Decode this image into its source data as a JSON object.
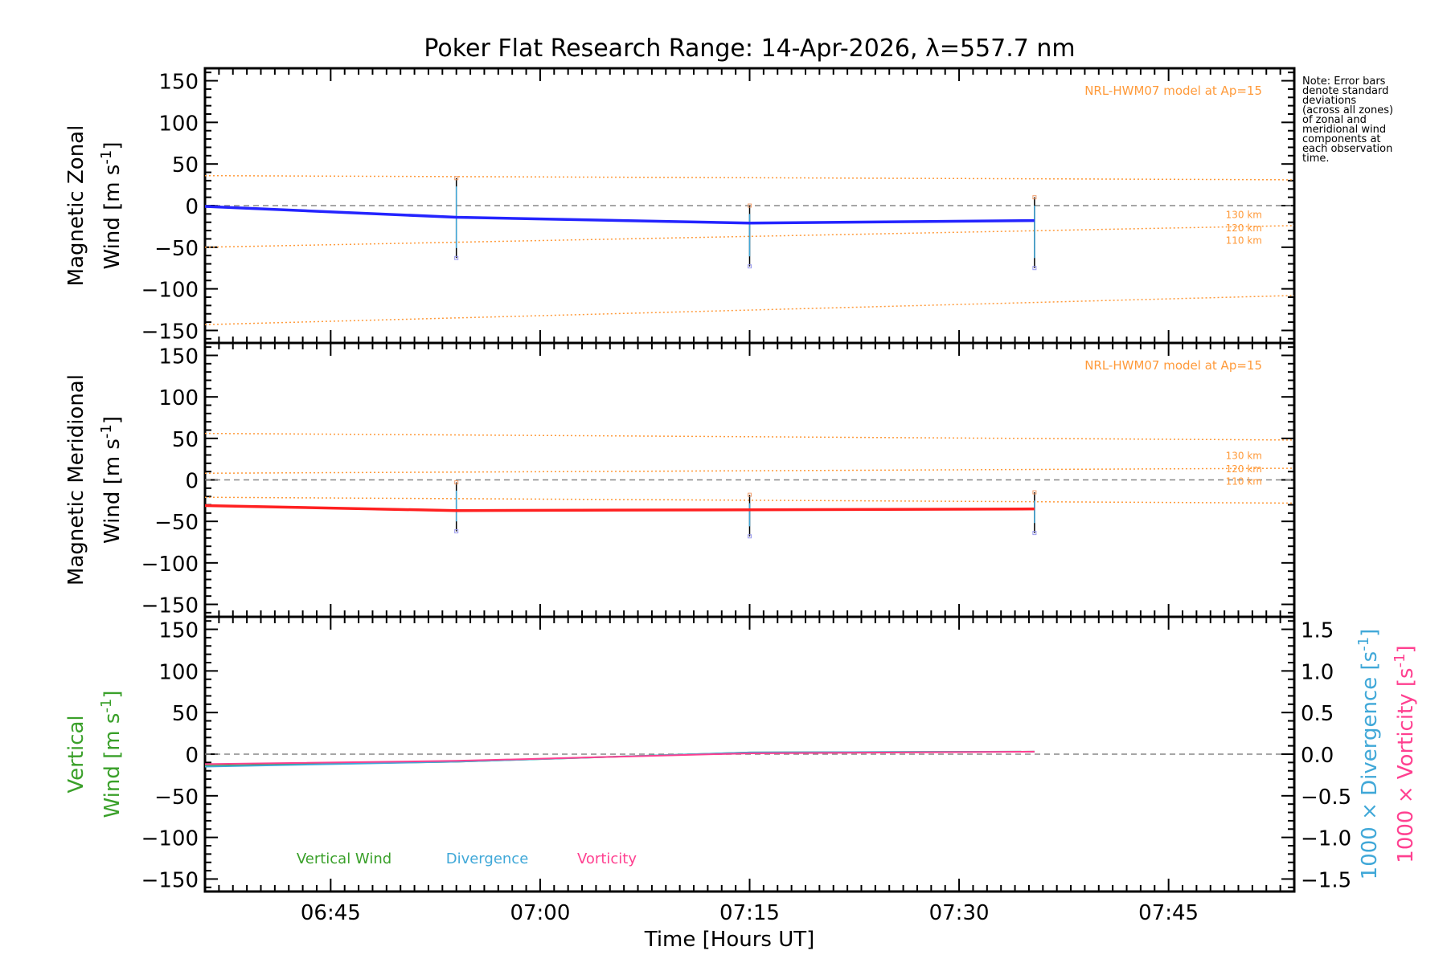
{
  "chart_data": [
    {
      "type": "line",
      "panel": "zonal",
      "title": "Poker Flat Research Range: 14-Apr-2026, λ=557.7 nm",
      "ylabel_line1": "Magnetic Zonal",
      "ylabel_line2": "Wind [m s",
      "ylabel_sup": "-1",
      "ylabel_close": "]",
      "ylim": [
        -165,
        165
      ],
      "yticks": [
        150,
        100,
        50,
        0,
        -50,
        -100,
        -150
      ],
      "ytick_labels": [
        "150",
        "100",
        "50",
        "0",
        "−50",
        "−100",
        "−150"
      ],
      "model_label": "NRL-HWM07 model at Ap=15",
      "model_altitude_labels": [
        "130 km",
        "120 km",
        "110 km"
      ],
      "model_series": [
        {
          "name": "model-upper",
          "x": [
            6.6,
            7.9
          ],
          "values": [
            36,
            31
          ]
        },
        {
          "name": "model-110",
          "x": [
            6.6,
            7.9
          ],
          "values": [
            -50,
            -24
          ]
        },
        {
          "name": "model-lower",
          "x": [
            6.6,
            7.9
          ],
          "values": [
            -143,
            -108
          ]
        }
      ],
      "series": [
        {
          "name": "Magnetic Zonal Wind",
          "color": "#2424ff",
          "x": [
            6.6,
            6.9,
            7.25,
            7.59
          ],
          "values": [
            -1,
            -14,
            -21,
            -18
          ]
        }
      ],
      "error_bars": [
        {
          "x": 6.9,
          "low": -63,
          "high": 33
        },
        {
          "x": 7.25,
          "low": -73,
          "high": 0
        },
        {
          "x": 7.59,
          "low": -75,
          "high": 10
        }
      ]
    },
    {
      "type": "line",
      "panel": "meridional",
      "ylabel_line1": "Magnetic Meridional",
      "ylabel_line2": "Wind [m s",
      "ylabel_sup": "-1",
      "ylabel_close": "]",
      "ylim": [
        -165,
        165
      ],
      "yticks": [
        150,
        100,
        50,
        0,
        -50,
        -100,
        -150
      ],
      "ytick_labels": [
        "150",
        "100",
        "50",
        "0",
        "−50",
        "−100",
        "−150"
      ],
      "model_label": "NRL-HWM07 model at Ap=15",
      "model_altitude_labels": [
        "130 km",
        "120 km",
        "110 km"
      ],
      "model_series": [
        {
          "name": "model-130",
          "x": [
            6.6,
            7.9
          ],
          "values": [
            56,
            48
          ]
        },
        {
          "name": "model-120",
          "x": [
            6.6,
            7.9
          ],
          "values": [
            8,
            14
          ]
        },
        {
          "name": "model-110",
          "x": [
            6.6,
            7.9
          ],
          "values": [
            -21,
            -28
          ]
        }
      ],
      "series": [
        {
          "name": "Magnetic Meridional Wind",
          "color": "#ff2020",
          "x": [
            6.6,
            6.9,
            7.25,
            7.59
          ],
          "values": [
            -31,
            -37,
            -36,
            -35
          ]
        }
      ],
      "error_bars": [
        {
          "x": 6.9,
          "low": -62,
          "high": -3
        },
        {
          "x": 7.25,
          "low": -68,
          "high": -18
        },
        {
          "x": 7.59,
          "low": -64,
          "high": -15
        }
      ]
    },
    {
      "type": "line",
      "panel": "vertical",
      "ylabel_line1": "Vertical",
      "ylabel_line2": "Wind [m s",
      "ylabel_sup": "-1",
      "ylabel_close": "]",
      "ylim": [
        -165,
        165
      ],
      "yticks": [
        150,
        100,
        50,
        0,
        -50,
        -100,
        -150
      ],
      "ytick_labels": [
        "150",
        "100",
        "50",
        "0",
        "−50",
        "−100",
        "−150"
      ],
      "y2lim": [
        -1.65,
        1.65
      ],
      "y2ticks": [
        1.5,
        1.0,
        0.5,
        0.0,
        -0.5,
        -1.0,
        -1.5
      ],
      "y2tick_labels": [
        "1.5",
        "1.0",
        "0.5",
        "0.0",
        "−0.5",
        "−1.0",
        "−1.5"
      ],
      "y2label_div": "1000 × Divergence [s",
      "y2label_vor": "1000 × Vorticity [s",
      "y2label_sup": "-1",
      "y2label_close": "]",
      "legend": [
        "Vertical Wind",
        "Divergence",
        "Vorticity"
      ],
      "series": [
        {
          "name": "Vertical Wind",
          "color": "#3aa02a",
          "x": [
            6.6,
            6.9,
            7.25,
            7.59
          ],
          "values": [
            -14,
            -9,
            2,
            3
          ]
        },
        {
          "name": "Divergence",
          "color": "#40a8d8",
          "x": [
            6.6,
            6.9,
            7.25,
            7.59
          ],
          "values": [
            -0.15,
            -0.09,
            0.02,
            0.03
          ]
        },
        {
          "name": "Vorticity",
          "color": "#ff4090",
          "x": [
            6.6,
            6.9,
            7.25,
            7.59
          ],
          "values": [
            -0.12,
            -0.08,
            0.01,
            0.03
          ]
        }
      ]
    }
  ],
  "xaxis": {
    "xlim": [
      6.6,
      7.9
    ],
    "ticks": [
      6.75,
      7.0,
      7.25,
      7.5,
      7.75
    ],
    "tick_labels": [
      "06:45",
      "07:00",
      "07:15",
      "07:30",
      "07:45"
    ],
    "label": "Time [Hours UT]"
  },
  "note_text": "Note: Error bars\ndenote standard\ndeviations\n(across all zones)\nof zonal and\nmeridional wind\ncomponents at\neach observation\ntime.",
  "colors": {
    "zonal": "#2424ff",
    "meridional": "#ff2020",
    "model": "#ff9a3a",
    "vertical": "#3aa02a",
    "divergence": "#40a8d8",
    "vorticity": "#ff4090",
    "zero_line": "#888888"
  }
}
